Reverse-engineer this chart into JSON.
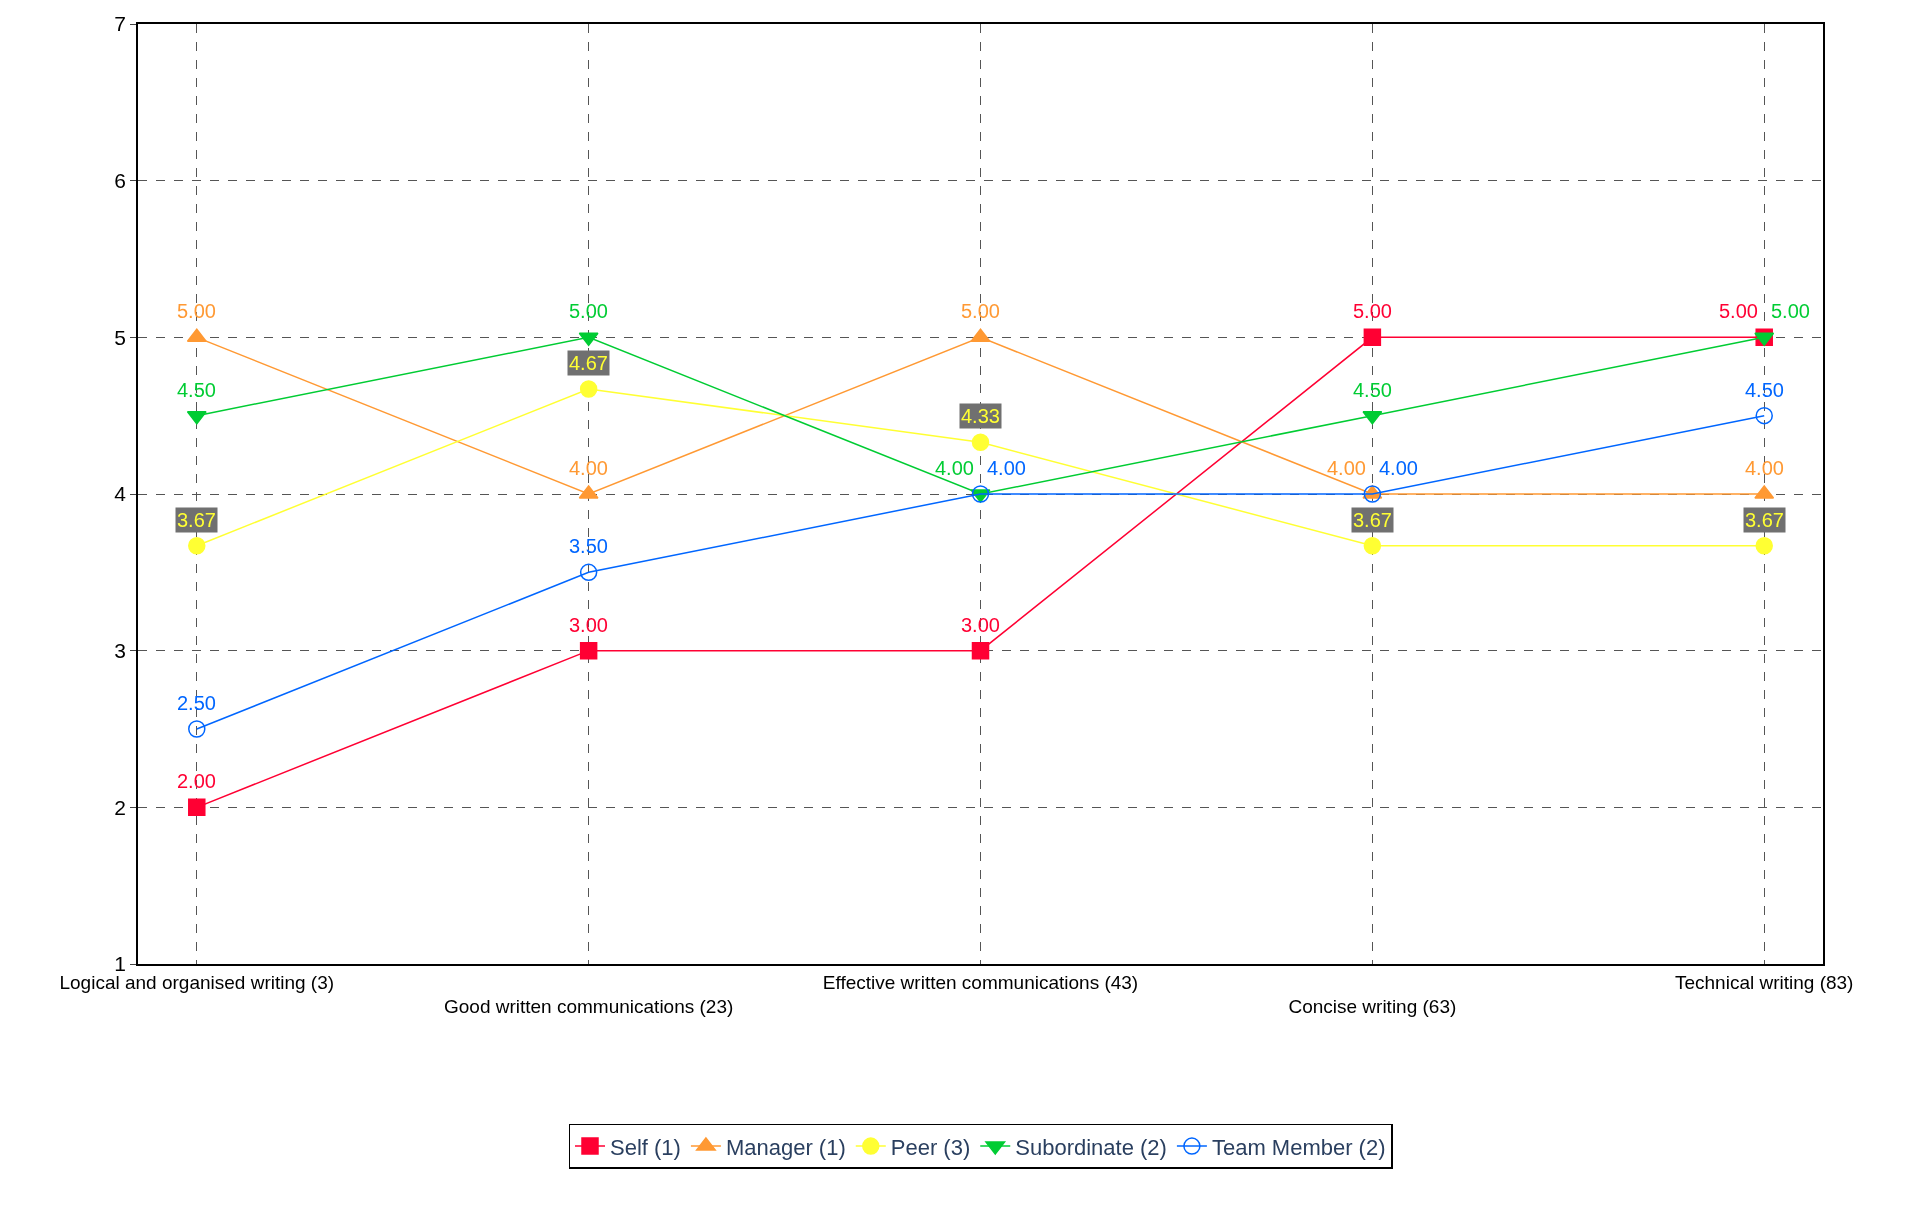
{
  "chart_data": {
    "type": "line",
    "categories": [
      "Logical and organised writing (3)",
      "Good written communications (23)",
      "Effective written communications (43)",
      "Concise writing (63)",
      "Technical writing (83)"
    ],
    "series": [
      {
        "name": "Self (1)",
        "color": "#ff0033",
        "marker": "square",
        "values": [
          2.0,
          3.0,
          3.0,
          5.0,
          5.0
        ],
        "value_labels": [
          "2.00",
          "3.00",
          "3.00",
          "5.00",
          "5.00"
        ]
      },
      {
        "name": "Manager (1)",
        "color": "#ff9933",
        "marker": "triangle",
        "values": [
          5.0,
          4.0,
          5.0,
          4.0,
          4.0
        ],
        "value_labels": [
          "5.00",
          "4.00",
          "5.00",
          "4.00",
          "4.00"
        ]
      },
      {
        "name": "Peer (3)",
        "color": "#ffff33",
        "marker": "circle",
        "values": [
          3.67,
          4.67,
          4.33,
          3.67,
          3.67
        ],
        "value_labels": [
          "3.67",
          "4.67",
          "4.33",
          "3.67",
          "3.67"
        ]
      },
      {
        "name": "Subordinate (2)",
        "color": "#00cc33",
        "marker": "triangle-down",
        "values": [
          4.5,
          5.0,
          4.0,
          4.5,
          5.0
        ],
        "value_labels": [
          "4.50",
          "5.00",
          "4.00",
          "4.50",
          "5.00"
        ]
      },
      {
        "name": "Team Member (2)",
        "color": "#0066ff",
        "marker": "circle-open",
        "values": [
          2.5,
          3.5,
          4.0,
          4.0,
          4.5
        ],
        "value_labels": [
          "2.50",
          "3.50",
          "4.00",
          "4.00",
          "4.50"
        ]
      }
    ],
    "ylim": [
      1,
      7
    ],
    "yticks": [
      1,
      2,
      3,
      4,
      5,
      6,
      7
    ],
    "grid": true,
    "legend": "bottom",
    "line_style": "solid"
  }
}
